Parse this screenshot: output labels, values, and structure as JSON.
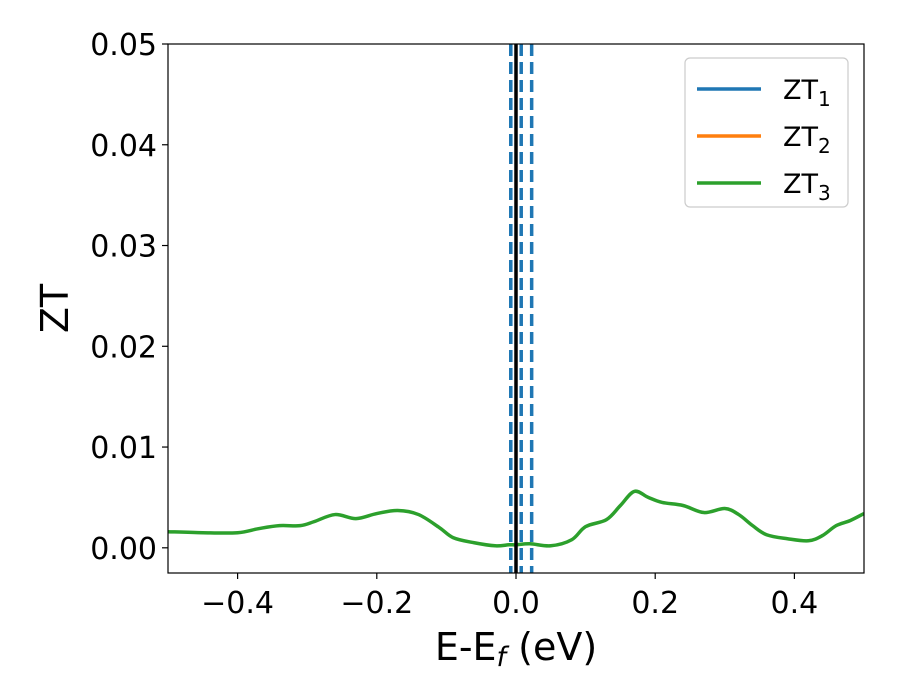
{
  "chart_data": {
    "type": "line",
    "xlabel": "E-E",
    "xlabel_sub": "f",
    "xlabel_unit": " (eV)",
    "ylabel": "ZT",
    "xlim": [
      -0.5,
      0.5
    ],
    "ylim": [
      -0.0025,
      0.05
    ],
    "xticks": [
      -0.4,
      -0.2,
      0.0,
      0.2,
      0.4
    ],
    "xtick_labels": [
      "−0.4",
      "−0.2",
      "0.0",
      "0.2",
      "0.4"
    ],
    "yticks": [
      0.0,
      0.01,
      0.02,
      0.03,
      0.04,
      0.05
    ],
    "ytick_labels": [
      "0.00",
      "0.01",
      "0.02",
      "0.03",
      "0.04",
      "0.05"
    ],
    "grid": false,
    "legend_position": "top-right",
    "series": [
      {
        "name": "ZT",
        "sub": "1",
        "color": "#1f77b4",
        "x": [],
        "y": []
      },
      {
        "name": "ZT",
        "sub": "2",
        "color": "#ff7f0e",
        "x": [],
        "y": []
      },
      {
        "name": "ZT",
        "sub": "3",
        "color": "#2ca02c",
        "x": [
          -0.5,
          -0.45,
          -0.4,
          -0.37,
          -0.34,
          -0.31,
          -0.29,
          -0.26,
          -0.23,
          -0.2,
          -0.17,
          -0.14,
          -0.11,
          -0.09,
          -0.06,
          -0.03,
          -0.01,
          0.0,
          0.02,
          0.05,
          0.08,
          0.1,
          0.13,
          0.15,
          0.17,
          0.19,
          0.21,
          0.24,
          0.27,
          0.3,
          0.32,
          0.34,
          0.36,
          0.39,
          0.42,
          0.44,
          0.46,
          0.48,
          0.5
        ],
        "y": [
          0.0016,
          0.0015,
          0.0015,
          0.0019,
          0.0022,
          0.0022,
          0.0026,
          0.0033,
          0.0029,
          0.0034,
          0.0037,
          0.0033,
          0.002,
          0.001,
          0.0005,
          0.0002,
          0.0003,
          0.0003,
          0.0004,
          0.0002,
          0.0008,
          0.0021,
          0.0028,
          0.0042,
          0.0056,
          0.005,
          0.0045,
          0.0042,
          0.0035,
          0.0039,
          0.0033,
          0.0022,
          0.0013,
          0.0009,
          0.0007,
          0.0012,
          0.0022,
          0.0027,
          0.0034
        ]
      }
    ],
    "vlines": [
      {
        "x": 0.0,
        "color": "#000000",
        "style": "solid"
      },
      {
        "x": -0.0075,
        "color": "#1f77b4",
        "style": "dashed"
      },
      {
        "x": 0.0075,
        "color": "#1f77b4",
        "style": "dashed"
      },
      {
        "x": -0.0075,
        "color": "#1f77b4",
        "style": "dashed"
      },
      {
        "x": 0.0225,
        "color": "#1f77b4",
        "style": "dashed"
      }
    ]
  }
}
